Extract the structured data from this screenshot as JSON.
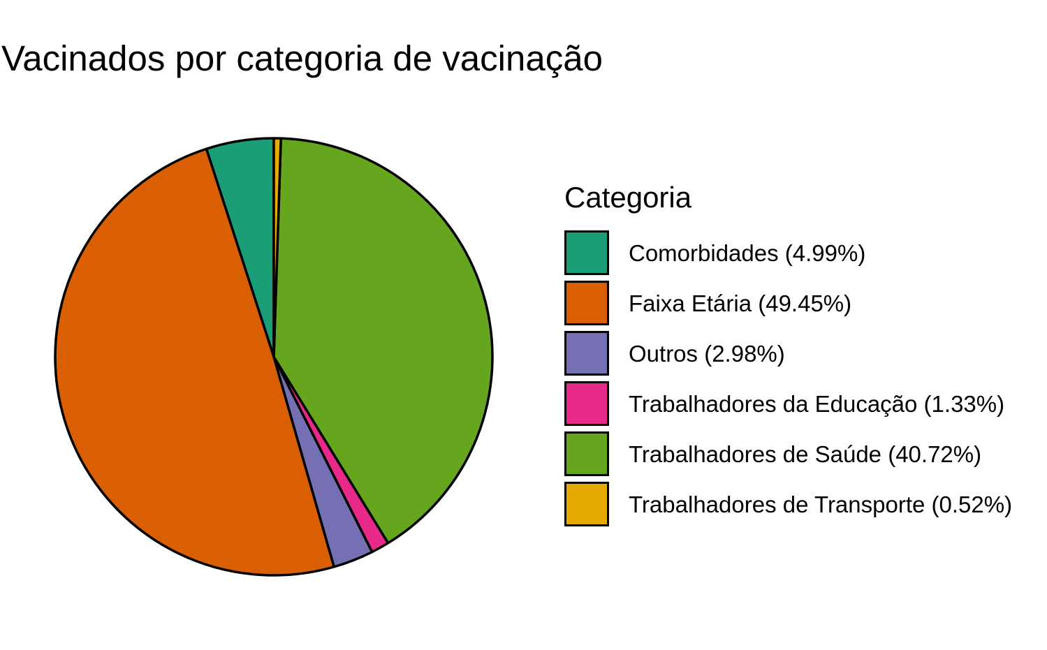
{
  "chart_data": {
    "type": "pie",
    "title": "Vacinados por categoria de vacinação",
    "legend_title": "Categoria",
    "legend_position": "right",
    "start_angle": "top",
    "direction": "counterclockwise",
    "slices": [
      {
        "label": "Comorbidades (4.99%)",
        "category": "Comorbidades",
        "value": 4.99,
        "color": "#1b9e77"
      },
      {
        "label": "Faixa Etária (49.45%)",
        "category": "Faixa Etária",
        "value": 49.45,
        "color": "#d95f02"
      },
      {
        "label": "Outros (2.98%)",
        "category": "Outros",
        "value": 2.98,
        "color": "#7570b3"
      },
      {
        "label": "Trabalhadores da Educação (1.33%)",
        "category": "Trabalhadores da Educação",
        "value": 1.33,
        "color": "#e7298a"
      },
      {
        "label": "Trabalhadores de Saúde (40.72%)",
        "category": "Trabalhadores de Saúde",
        "value": 40.72,
        "color": "#66a61e"
      },
      {
        "label": "Trabalhadores de Transporte (0.52%)",
        "category": "Trabalhadores de Transporte",
        "value": 0.52,
        "color": "#e6ab02"
      }
    ]
  }
}
